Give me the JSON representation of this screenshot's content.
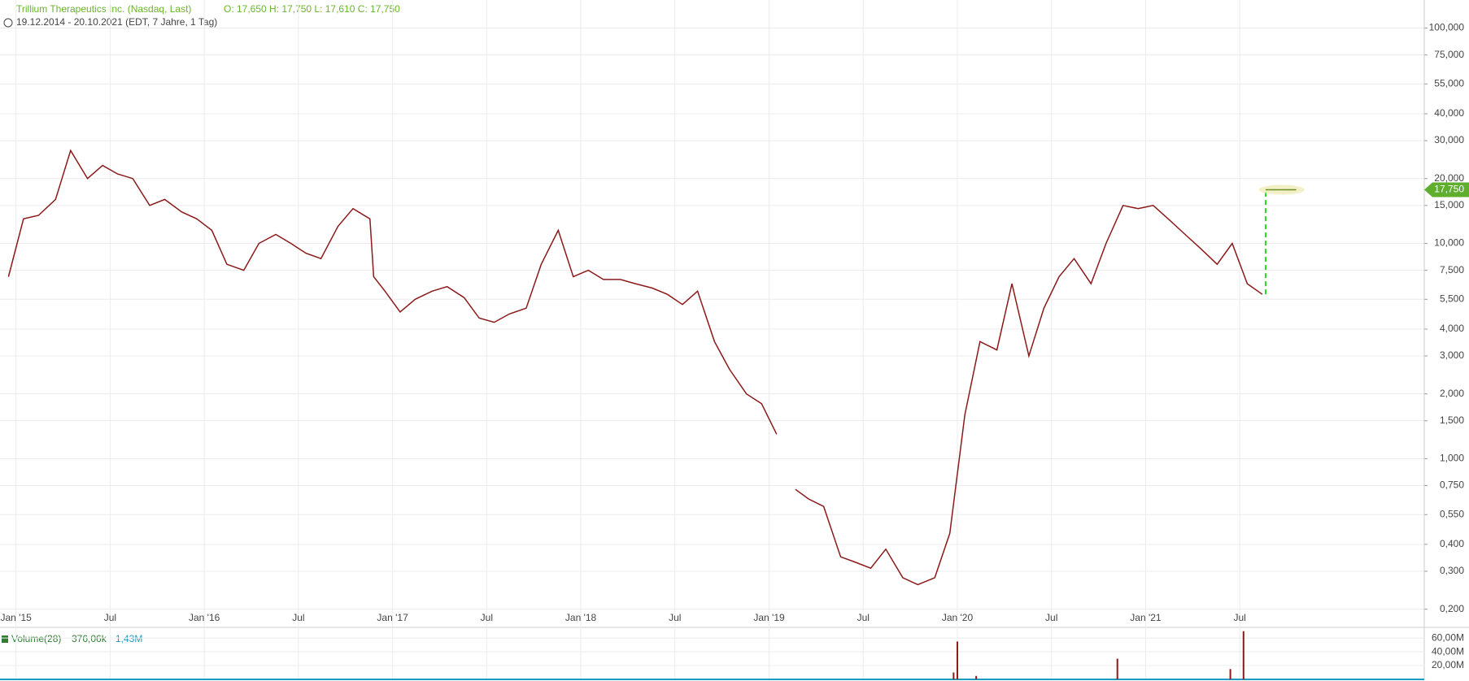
{
  "chart_data": [
    {
      "type": "line",
      "title": "Trillium Therapeutics Inc. (Nasdaq, Last)",
      "quote": "O: 17,650  H: 17,750  L: 17,610  C: 17,750",
      "subtitle": "19.12.2014 - 20.10.2021   (EDT, 7 Jahre, 1 Tag)",
      "color": "#8b1a1a",
      "log_scale": true,
      "grid": true,
      "x": [
        2014.96,
        2015.04,
        2015.12,
        2015.21,
        2015.29,
        2015.38,
        2015.46,
        2015.54,
        2015.62,
        2015.71,
        2015.79,
        2015.88,
        2015.96,
        2016.04,
        2016.12,
        2016.21,
        2016.29,
        2016.38,
        2016.46,
        2016.54,
        2016.62,
        2016.71,
        2016.79,
        2016.88,
        2016.9,
        2016.96,
        2017.04,
        2017.12,
        2017.21,
        2017.29,
        2017.38,
        2017.46,
        2017.54,
        2017.62,
        2017.71,
        2017.79,
        2017.88,
        2017.96,
        2018.04,
        2018.12,
        2018.21,
        2018.29,
        2018.38,
        2018.46,
        2018.54,
        2018.62,
        2018.71,
        2018.79,
        2018.88,
        2018.96,
        2019.04,
        2019.09,
        2019.14,
        2019.21,
        2019.29,
        2019.38,
        2019.46,
        2019.54,
        2019.62,
        2019.71,
        2019.79,
        2019.88,
        2019.96,
        2020.04,
        2020.12,
        2020.21,
        2020.29,
        2020.38,
        2020.46,
        2020.54,
        2020.62,
        2020.71,
        2020.79,
        2020.88,
        2020.96,
        2021.04,
        2021.12,
        2021.21,
        2021.29,
        2021.38,
        2021.46,
        2021.54,
        2021.62
      ],
      "values": [
        7.0,
        13,
        13.5,
        16,
        27,
        20,
        23,
        21,
        20,
        15,
        16,
        14,
        13,
        11.5,
        8,
        7.5,
        10,
        11,
        10,
        9,
        8.5,
        12,
        14.5,
        13,
        7,
        6,
        4.8,
        5.5,
        6.0,
        6.3,
        5.6,
        4.5,
        4.3,
        4.7,
        5.0,
        8,
        11.5,
        7,
        7.5,
        6.8,
        6.8,
        6.5,
        6.2,
        5.8,
        5.2,
        6.0,
        3.5,
        2.6,
        2.0,
        1.8,
        1.3,
        null,
        0.72,
        0.65,
        0.6,
        0.35,
        0.33,
        0.31,
        0.38,
        0.28,
        0.26,
        0.28,
        0.45,
        1.6,
        3.5,
        3.2,
        6.5,
        3.0,
        5,
        7,
        8.5,
        6.5,
        10,
        15,
        14.5,
        15,
        13,
        11,
        9.5,
        8,
        10,
        6.5,
        5.8
      ],
      "last_price": {
        "value": 17.75,
        "label": "17,750"
      },
      "last_x": 2021.8,
      "xlim": [
        2014.915,
        2022.48
      ],
      "xticks": [
        {
          "value": 2015,
          "label": "Jan '15"
        },
        {
          "value": 2015.5,
          "label": "Jul"
        },
        {
          "value": 2016,
          "label": "Jan '16"
        },
        {
          "value": 2016.5,
          "label": "Jul"
        },
        {
          "value": 2017,
          "label": "Jan '17"
        },
        {
          "value": 2017.5,
          "label": "Jul"
        },
        {
          "value": 2018,
          "label": "Jan '18"
        },
        {
          "value": 2018.5,
          "label": "Jul"
        },
        {
          "value": 2019,
          "label": "Jan '19"
        },
        {
          "value": 2019.5,
          "label": "Jul"
        },
        {
          "value": 2020,
          "label": "Jan '20"
        },
        {
          "value": 2020.5,
          "label": "Jul"
        },
        {
          "value": 2021,
          "label": "Jan '21"
        },
        {
          "value": 2021.5,
          "label": "Jul"
        }
      ],
      "ylim": [
        0.175,
        135
      ],
      "yticks": [
        {
          "value": 0.2,
          "label": "0,200"
        },
        {
          "value": 0.3,
          "label": "0,300"
        },
        {
          "value": 0.4,
          "label": "0,400"
        },
        {
          "value": 0.55,
          "label": "0,550"
        },
        {
          "value": 0.75,
          "label": "0,750"
        },
        {
          "value": 1,
          "label": "1,000"
        },
        {
          "value": 1.5,
          "label": "1,500"
        },
        {
          "value": 2,
          "label": "2,000"
        },
        {
          "value": 3,
          "label": "3,000"
        },
        {
          "value": 4,
          "label": "4,000"
        },
        {
          "value": 5.5,
          "label": "5,500"
        },
        {
          "value": 7.5,
          "label": "7,500"
        },
        {
          "value": 10,
          "label": "10,000"
        },
        {
          "value": 15,
          "label": "15,000"
        },
        {
          "value": 20,
          "label": "20,000"
        },
        {
          "value": 30,
          "label": "30,000"
        },
        {
          "value": 40,
          "label": "40,000"
        },
        {
          "value": 55,
          "label": "55,000"
        },
        {
          "value": 75,
          "label": "75,000"
        },
        {
          "value": 100,
          "label": "100,000"
        }
      ]
    },
    {
      "type": "bar",
      "title": "Volume(28)",
      "stat_1": "376,06k",
      "stat_2": "1,43M",
      "color": "#8b1a1a",
      "x": [
        2019.98,
        2020.0,
        2020.1,
        2020.85,
        2021.45,
        2021.52
      ],
      "values": [
        10,
        55,
        5,
        30,
        15,
        70
      ],
      "ylim": [
        0,
        72
      ],
      "yticks": [
        {
          "value": 20,
          "label": "20,00M"
        },
        {
          "value": 40,
          "label": "40,00M"
        },
        {
          "value": 60,
          "label": "60,00M"
        }
      ]
    }
  ]
}
